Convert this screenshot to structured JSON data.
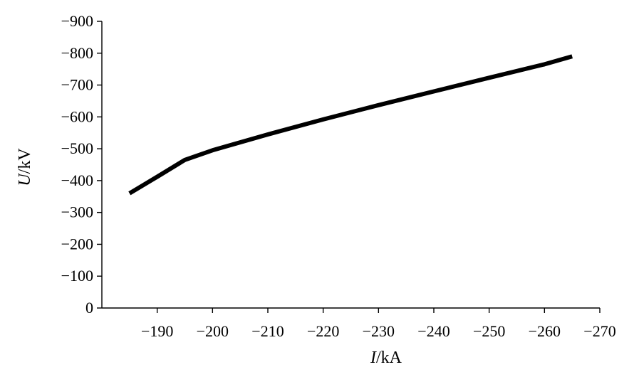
{
  "chart_data": {
    "type": "line",
    "title": "",
    "xlabel": {
      "var": "I",
      "unit": "/kA"
    },
    "ylabel": {
      "var": "U",
      "unit": "/kV"
    },
    "xlim": [
      -180,
      -270
    ],
    "ylim": [
      0,
      -900
    ],
    "xticks": [
      -190,
      -200,
      -210,
      -220,
      -230,
      -240,
      -250,
      -260,
      -270
    ],
    "xtick_labels": [
      "−190",
      "−200",
      "−210",
      "−220",
      "−230",
      "−240",
      "−250",
      "−260",
      "−270"
    ],
    "yticks": [
      0,
      -100,
      -200,
      -300,
      -400,
      -500,
      -600,
      -700,
      -800,
      -900
    ],
    "ytick_labels": [
      "0",
      "−100",
      "−200",
      "−300",
      "−400",
      "−500",
      "−600",
      "−700",
      "−800",
      "−900"
    ],
    "grid": false,
    "legend": "none",
    "series": [
      {
        "line_color": "#000000",
        "x": [
          -185,
          -190,
          -195,
          -200,
          -210,
          -220,
          -230,
          -240,
          -250,
          -260,
          -265
        ],
        "y": [
          -360,
          -412,
          -465,
          -495,
          -545,
          -592,
          -637,
          -680,
          -723,
          -765,
          -790
        ]
      }
    ]
  }
}
